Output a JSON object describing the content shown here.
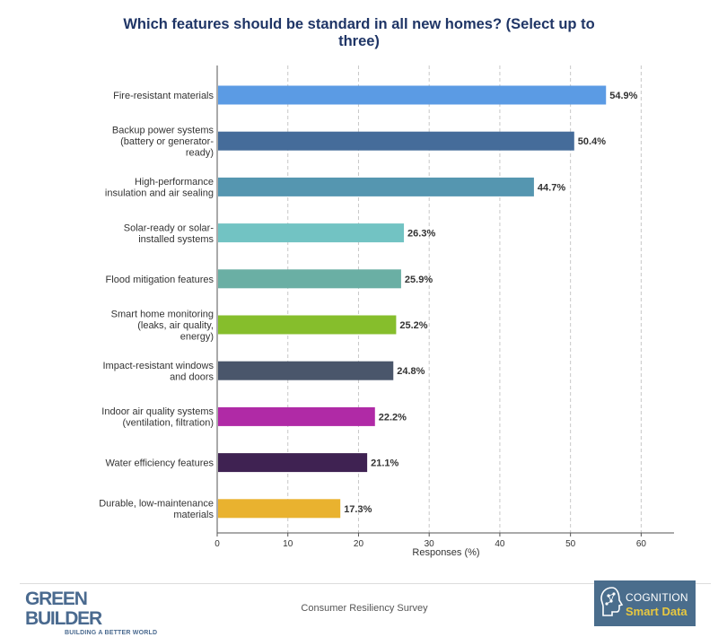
{
  "chart_data": {
    "type": "bar",
    "orientation": "horizontal",
    "title": "Which features should be standard in all new homes? (Select up to three)",
    "xlabel": "Responses (%)",
    "xlim": [
      0,
      65
    ],
    "xticks": [
      "0",
      "10",
      "20",
      "30",
      "40",
      "50",
      "60"
    ],
    "grid": "vertical dashed",
    "categories": [
      [
        "Fire-resistant materials"
      ],
      [
        "Backup power systems",
        "(battery or generator-",
        "ready)"
      ],
      [
        "High-performance",
        "insulation and air sealing"
      ],
      [
        "Solar-ready or solar-",
        "installed systems"
      ],
      [
        "Flood mitigation features"
      ],
      [
        "Smart home monitoring",
        "(leaks, air quality,",
        "energy)"
      ],
      [
        "Impact-resistant windows",
        "and doors"
      ],
      [
        "Indoor air quality systems",
        "(ventilation, filtration)"
      ],
      [
        "Water efficiency features"
      ],
      [
        "Durable, low-maintenance",
        "materials"
      ]
    ],
    "values": [
      54.9,
      50.4,
      44.7,
      26.3,
      25.9,
      25.2,
      24.8,
      22.2,
      21.1,
      17.3
    ],
    "value_labels": [
      "54.9%",
      "50.4%",
      "44.7%",
      "26.3%",
      "25.9%",
      "25.2%",
      "24.8%",
      "22.2%",
      "21.1%",
      "17.3%"
    ],
    "colors": [
      "#5b9be4",
      "#456c9a",
      "#5596b0",
      "#72c3c3",
      "#6aafa4",
      "#86be2c",
      "#4a566b",
      "#b02aa6",
      "#3f2252",
      "#e9b22f"
    ]
  },
  "footer": {
    "source": "Consumer Resiliency Survey",
    "left_logo": {
      "name": "GREEN BUILDER",
      "tagline": "BUILDING A BETTER WORLD"
    },
    "right_logo": {
      "line1": "COGNITION",
      "line2": "Smart Data"
    }
  },
  "colors": {
    "title": "#1f3566",
    "text": "#333333",
    "grid": "#c8c8c8",
    "logo_blue": "#4a6a8f",
    "cognition_bg": "#4a6d8c",
    "cognition_accent": "#e8c840"
  }
}
